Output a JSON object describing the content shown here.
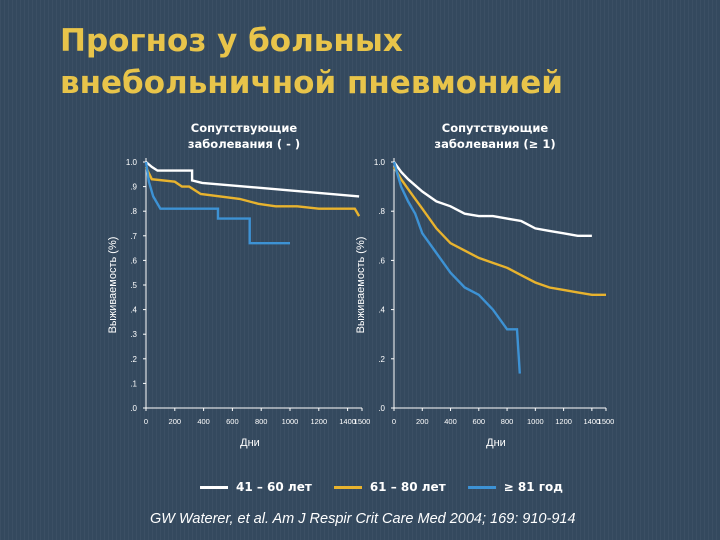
{
  "title_lines": [
    "Прогноз у больных",
    "внебольничной пневмонией"
  ],
  "colors": {
    "age_41_60": "#ffffff",
    "age_61_80": "#e8b32e",
    "age_81_plus": "#3d92d4",
    "title": "#e8c44a",
    "axis": "#ffffff"
  },
  "legend": [
    {
      "label": "41 – 60 лет",
      "color": "#ffffff"
    },
    {
      "label": "61 – 80 лет",
      "color": "#e8b32e"
    },
    {
      "label": "≥ 81 год",
      "color": "#3d92d4"
    }
  ],
  "citation": "GW Waterer, et al. Am J Respir Crit Care Med 2004; 169: 910-914",
  "chart_data": [
    {
      "type": "line",
      "title_lines": [
        "Сопутствующие",
        "заболевания ( - )"
      ],
      "xlabel": "Дни",
      "ylabel": "Выживаемость (%)",
      "xlim": [
        0,
        1500
      ],
      "ylim": [
        0,
        1.0
      ],
      "x_ticks": [
        0,
        200,
        400,
        600,
        800,
        1000,
        1200,
        1400,
        1500
      ],
      "x_tick_labels": [
        "0",
        "200",
        "400",
        "600",
        "800",
        "1000",
        "1200",
        "1400",
        "1500"
      ],
      "y_ticks": [
        0,
        0.1,
        0.2,
        0.3,
        0.4,
        0.5,
        0.6,
        0.7,
        0.8,
        0.9,
        1.0
      ],
      "y_tick_labels": [
        ".0",
        ".1",
        ".2",
        ".3",
        ".4",
        ".5",
        ".6",
        ".7",
        ".8",
        ".9",
        "1.0"
      ],
      "series": [
        {
          "name": "41 – 60 лет",
          "x": [
            0,
            40,
            80,
            320,
            320,
            390,
            1480
          ],
          "y": [
            1.0,
            0.98,
            0.965,
            0.965,
            0.925,
            0.915,
            0.86
          ]
        },
        {
          "name": "61 – 80 лет",
          "x": [
            0,
            15,
            40,
            200,
            250,
            300,
            380,
            650,
            780,
            900,
            1050,
            1200,
            1450,
            1480
          ],
          "y": [
            0.98,
            0.96,
            0.93,
            0.92,
            0.9,
            0.9,
            0.87,
            0.85,
            0.83,
            0.82,
            0.82,
            0.81,
            0.81,
            0.78
          ]
        },
        {
          "name": "≥ 81 год",
          "x": [
            0,
            20,
            50,
            100,
            500,
            500,
            720,
            720,
            1000
          ],
          "y": [
            1.0,
            0.92,
            0.86,
            0.81,
            0.81,
            0.77,
            0.77,
            0.67,
            0.67
          ]
        }
      ]
    },
    {
      "type": "line",
      "title_lines": [
        "Сопутствующие",
        "заболевания (≥ 1)"
      ],
      "xlabel": "Дни",
      "ylabel": "Выживаемость (%)",
      "xlim": [
        0,
        1500
      ],
      "ylim": [
        0,
        1.0
      ],
      "x_ticks": [
        0,
        200,
        400,
        600,
        800,
        1000,
        1200,
        1400,
        1500
      ],
      "x_tick_labels": [
        "0",
        "200",
        "400",
        "600",
        "800",
        "1000",
        "1200",
        "1400",
        "1500"
      ],
      "y_ticks": [
        0,
        0.2,
        0.4,
        0.6,
        0.8,
        1.0
      ],
      "y_tick_labels": [
        ".0",
        ".2",
        ".4",
        ".6",
        ".8",
        "1.0"
      ],
      "series": [
        {
          "name": "41 – 60 лет",
          "x": [
            0,
            50,
            100,
            200,
            300,
            400,
            500,
            600,
            700,
            800,
            900,
            1000,
            1100,
            1200,
            1300,
            1400
          ],
          "y": [
            1.0,
            0.96,
            0.93,
            0.88,
            0.84,
            0.82,
            0.79,
            0.78,
            0.78,
            0.77,
            0.76,
            0.73,
            0.72,
            0.71,
            0.7,
            0.7
          ]
        },
        {
          "name": "61 – 80 лет",
          "x": [
            0,
            50,
            100,
            150,
            200,
            300,
            400,
            500,
            600,
            700,
            800,
            900,
            1000,
            1100,
            1200,
            1300,
            1400,
            1500
          ],
          "y": [
            0.98,
            0.93,
            0.89,
            0.85,
            0.81,
            0.73,
            0.67,
            0.64,
            0.61,
            0.59,
            0.57,
            0.54,
            0.51,
            0.49,
            0.48,
            0.47,
            0.46,
            0.46
          ]
        },
        {
          "name": "≥ 81 год",
          "x": [
            0,
            50,
            100,
            150,
            200,
            300,
            400,
            500,
            600,
            700,
            800,
            870,
            890
          ],
          "y": [
            1.0,
            0.9,
            0.84,
            0.79,
            0.71,
            0.63,
            0.55,
            0.49,
            0.46,
            0.4,
            0.32,
            0.32,
            0.14
          ]
        }
      ]
    }
  ]
}
